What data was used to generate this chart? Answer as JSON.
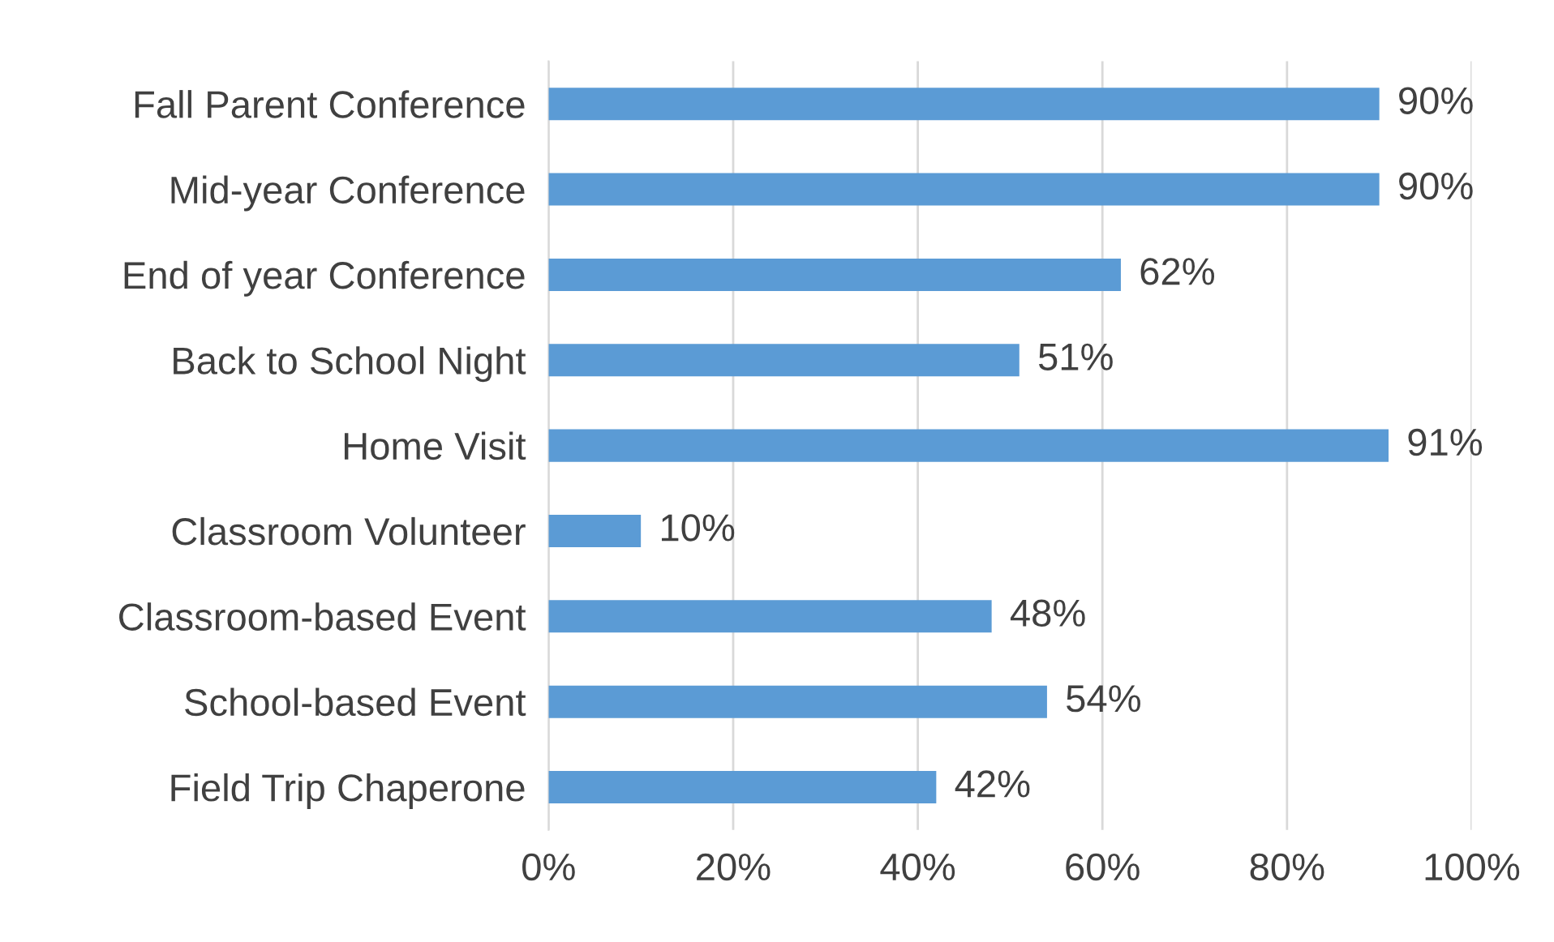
{
  "chart_data": {
    "type": "bar",
    "orientation": "horizontal",
    "categories": [
      "Fall Parent Conference",
      "Mid-year Conference",
      "End of year Conference",
      "Back to School Night",
      "Home Visit",
      "Classroom Volunteer",
      "Classroom-based Event",
      "School-based Event",
      "Field Trip Chaperone"
    ],
    "values": [
      90,
      90,
      62,
      51,
      91,
      10,
      48,
      54,
      42
    ],
    "value_labels": [
      "90%",
      "90%",
      "62%",
      "51%",
      "91%",
      "10%",
      "48%",
      "54%",
      "42%"
    ],
    "color": "#5b9bd5",
    "xlim": [
      0,
      100
    ],
    "xticks": [
      {
        "value": 0,
        "label": "0%"
      },
      {
        "value": 20,
        "label": "20%"
      },
      {
        "value": 40,
        "label": "40%"
      },
      {
        "value": 60,
        "label": "60%"
      },
      {
        "value": 80,
        "label": "80%"
      },
      {
        "value": 100,
        "label": "100%"
      }
    ],
    "grid": "x",
    "legend": false
  }
}
